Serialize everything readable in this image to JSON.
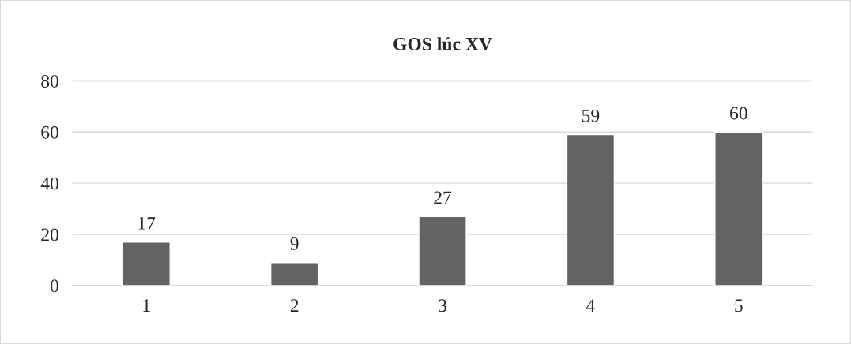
{
  "chart_data": {
    "type": "bar",
    "title": "GOS lúc XV",
    "categories": [
      "1",
      "2",
      "3",
      "4",
      "5"
    ],
    "values": [
      17,
      9,
      27,
      59,
      60
    ],
    "color": "#636363",
    "ylim": [
      0,
      80
    ],
    "yticks": [
      0,
      20,
      40,
      60,
      80
    ],
    "grid": "y",
    "data_labels": true
  }
}
